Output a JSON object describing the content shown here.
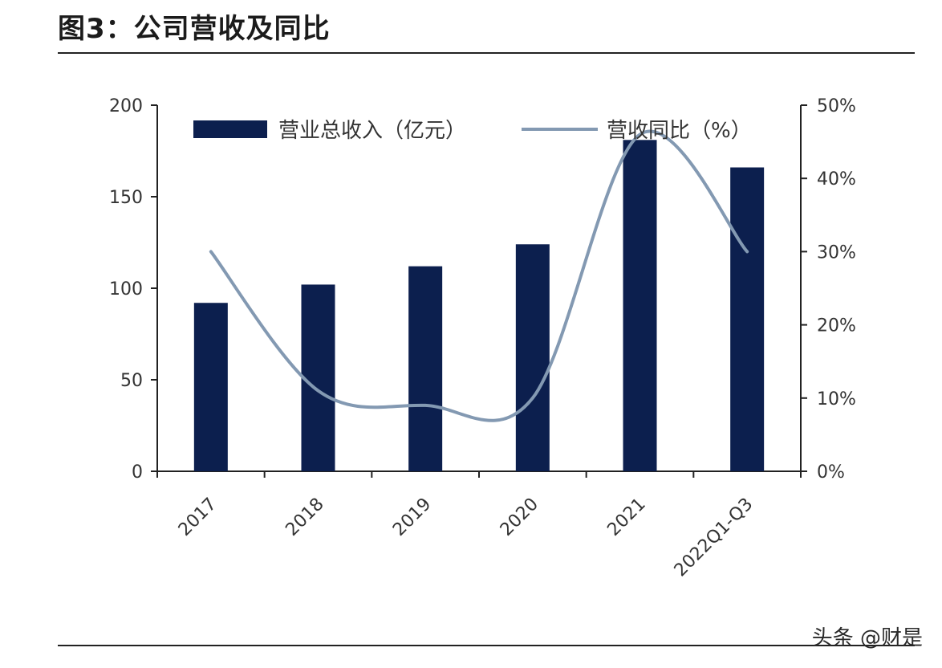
{
  "figure": {
    "title": "图3：公司营收及同比",
    "watermark": "头条 @财是"
  },
  "chart_data": {
    "type": "bar+line",
    "categories": [
      "2017",
      "2018",
      "2019",
      "2020",
      "2021",
      "2022Q1-Q3"
    ],
    "series": [
      {
        "name": "营业总收入（亿元）",
        "kind": "bar",
        "axis": "left",
        "color": "#0c1f4e",
        "values": [
          92,
          102,
          112,
          124,
          181,
          166
        ]
      },
      {
        "name": "营收同比（%）",
        "kind": "line",
        "axis": "right",
        "color": "#8399b2",
        "values": [
          30,
          11,
          9,
          10,
          46,
          30
        ]
      }
    ],
    "y_left": {
      "min": 0,
      "max": 200,
      "ticks": [
        "0",
        "50",
        "100",
        "150",
        "200"
      ]
    },
    "y_right": {
      "min": 0,
      "max": 50,
      "ticks": [
        "0%",
        "10%",
        "20%",
        "30%",
        "40%",
        "50%"
      ]
    },
    "legend": "top"
  }
}
